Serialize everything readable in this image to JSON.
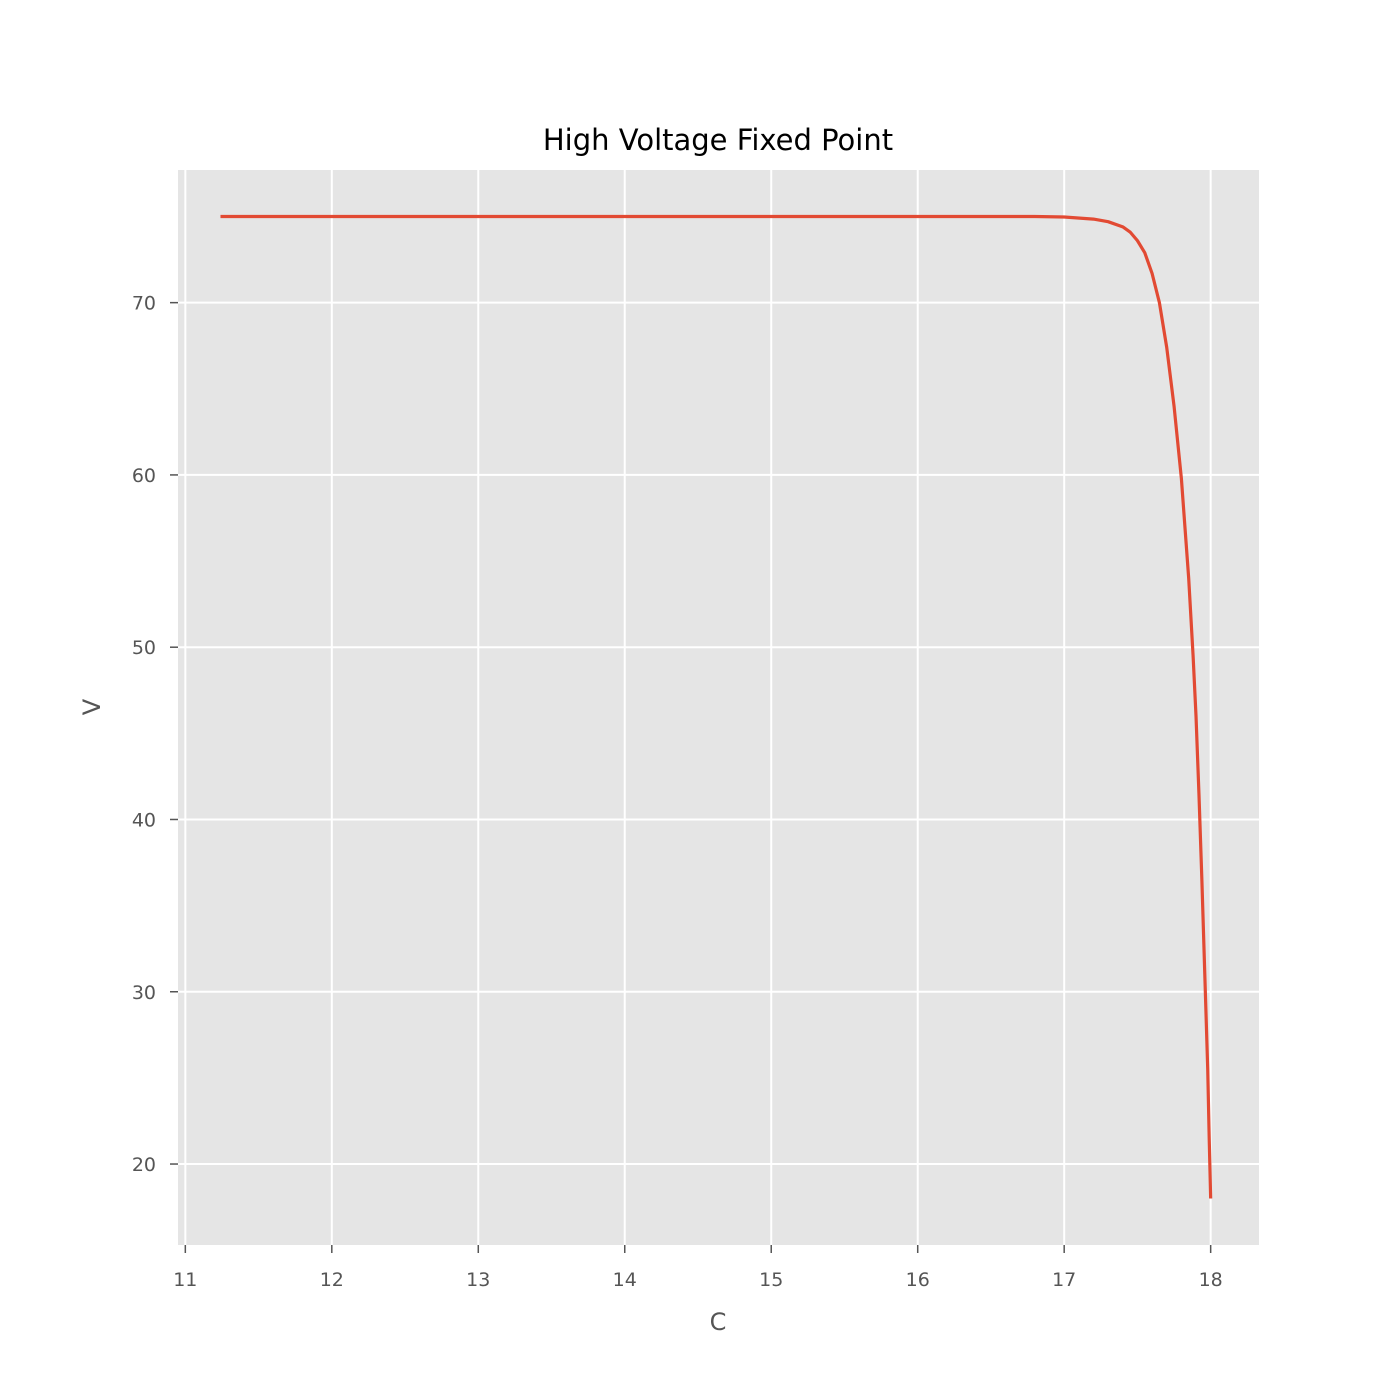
{
  "chart_data": {
    "type": "line",
    "title": "High Voltage Fixed Point",
    "xlabel": "C",
    "ylabel": "V",
    "xlim": [
      10.95,
      18.33
    ],
    "ylim": [
      15.3,
      77.7
    ],
    "xticks": [
      11,
      12,
      13,
      14,
      15,
      16,
      17,
      18
    ],
    "yticks": [
      20,
      30,
      40,
      50,
      60,
      70
    ],
    "grid": true,
    "colors": {
      "background": "#E5E5E5",
      "grid": "#FFFFFF",
      "line": "#E24A33",
      "tick_text": "#555555"
    },
    "series": [
      {
        "x": [
          11.24,
          12.0,
          13.0,
          14.0,
          15.0,
          16.0,
          16.8,
          17.0,
          17.2,
          17.3,
          17.4,
          17.45,
          17.5,
          17.55,
          17.6,
          17.65,
          17.7,
          17.75,
          17.8,
          17.85,
          17.88,
          17.9,
          17.92,
          17.94,
          17.96,
          17.98,
          17.99,
          18.0
        ],
        "y": [
          75.0,
          75.0,
          75.0,
          75.0,
          75.0,
          75.0,
          75.0,
          74.97,
          74.85,
          74.7,
          74.4,
          74.1,
          73.6,
          72.9,
          71.7,
          70.0,
          67.4,
          64.0,
          59.8,
          54.0,
          49.5,
          46.0,
          41.5,
          36.5,
          31.0,
          25.5,
          21.5,
          18.0
        ]
      }
    ]
  }
}
